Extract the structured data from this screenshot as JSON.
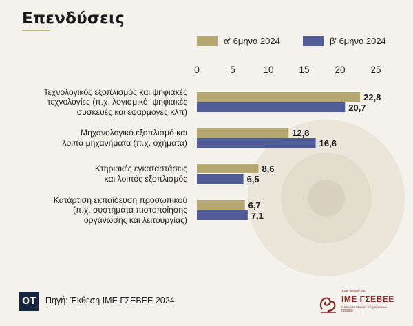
{
  "title": "Επενδύσεις",
  "legend": [
    {
      "label": "α' 6μηνο 2024",
      "color": "#b5a872"
    },
    {
      "label": "β' 6μηνο 2024",
      "color": "#505c95"
    }
  ],
  "footer": {
    "logo_text": "OT",
    "source": "Πηγή: Έκθεση ΙΜΕ ΓΣΕΒΕΕ 2024",
    "brand_top": "Ένας Θεσμός για",
    "brand_name": "ΙΜΕ ΓΣΕΒΕΕ",
    "brand_sub": "Ινστιτούτο Μικρών Επιχειρήσεων ΓΣΕΒΕΕ"
  },
  "chart_data": {
    "type": "bar",
    "orientation": "horizontal",
    "categories": [
      [
        "Τεχνολογικός εξοπλισμός και ψηφιακές",
        "τεχνολογίες (π.χ. λογισμικό, ψηφιακές",
        "συσκευές και εφαρμογές κλπ)"
      ],
      [
        "Μηχανολογικό εξοπλισμό και",
        "λοιπά μηχανήματα (π.χ. οχήματα)"
      ],
      [
        "Κτηριακές εγκαταστάσεις",
        "και λοιπός εξοπλισμός"
      ],
      [
        "Κατάρτιση εκπαίδευση προσωπικού",
        "(π.χ. συστήματα πιστοποίησης",
        "οργάνωσης και λειτουργίας)"
      ]
    ],
    "series": [
      {
        "name": "α' 6μηνο 2024",
        "values": [
          22.8,
          12.8,
          8.6,
          6.7
        ],
        "labels": [
          "22,8",
          "12,8",
          "8,6",
          "6,7"
        ]
      },
      {
        "name": "β' 6μηνο 2024",
        "values": [
          20.7,
          16.6,
          6.5,
          7.1
        ],
        "labels": [
          "20,7",
          "16,6",
          "6,5",
          "7,1"
        ]
      }
    ],
    "xlim": [
      0,
      25
    ],
    "xticks": [
      "0",
      "5",
      "10",
      "15",
      "20",
      "25"
    ],
    "axis_position": "top",
    "grid": false
  }
}
